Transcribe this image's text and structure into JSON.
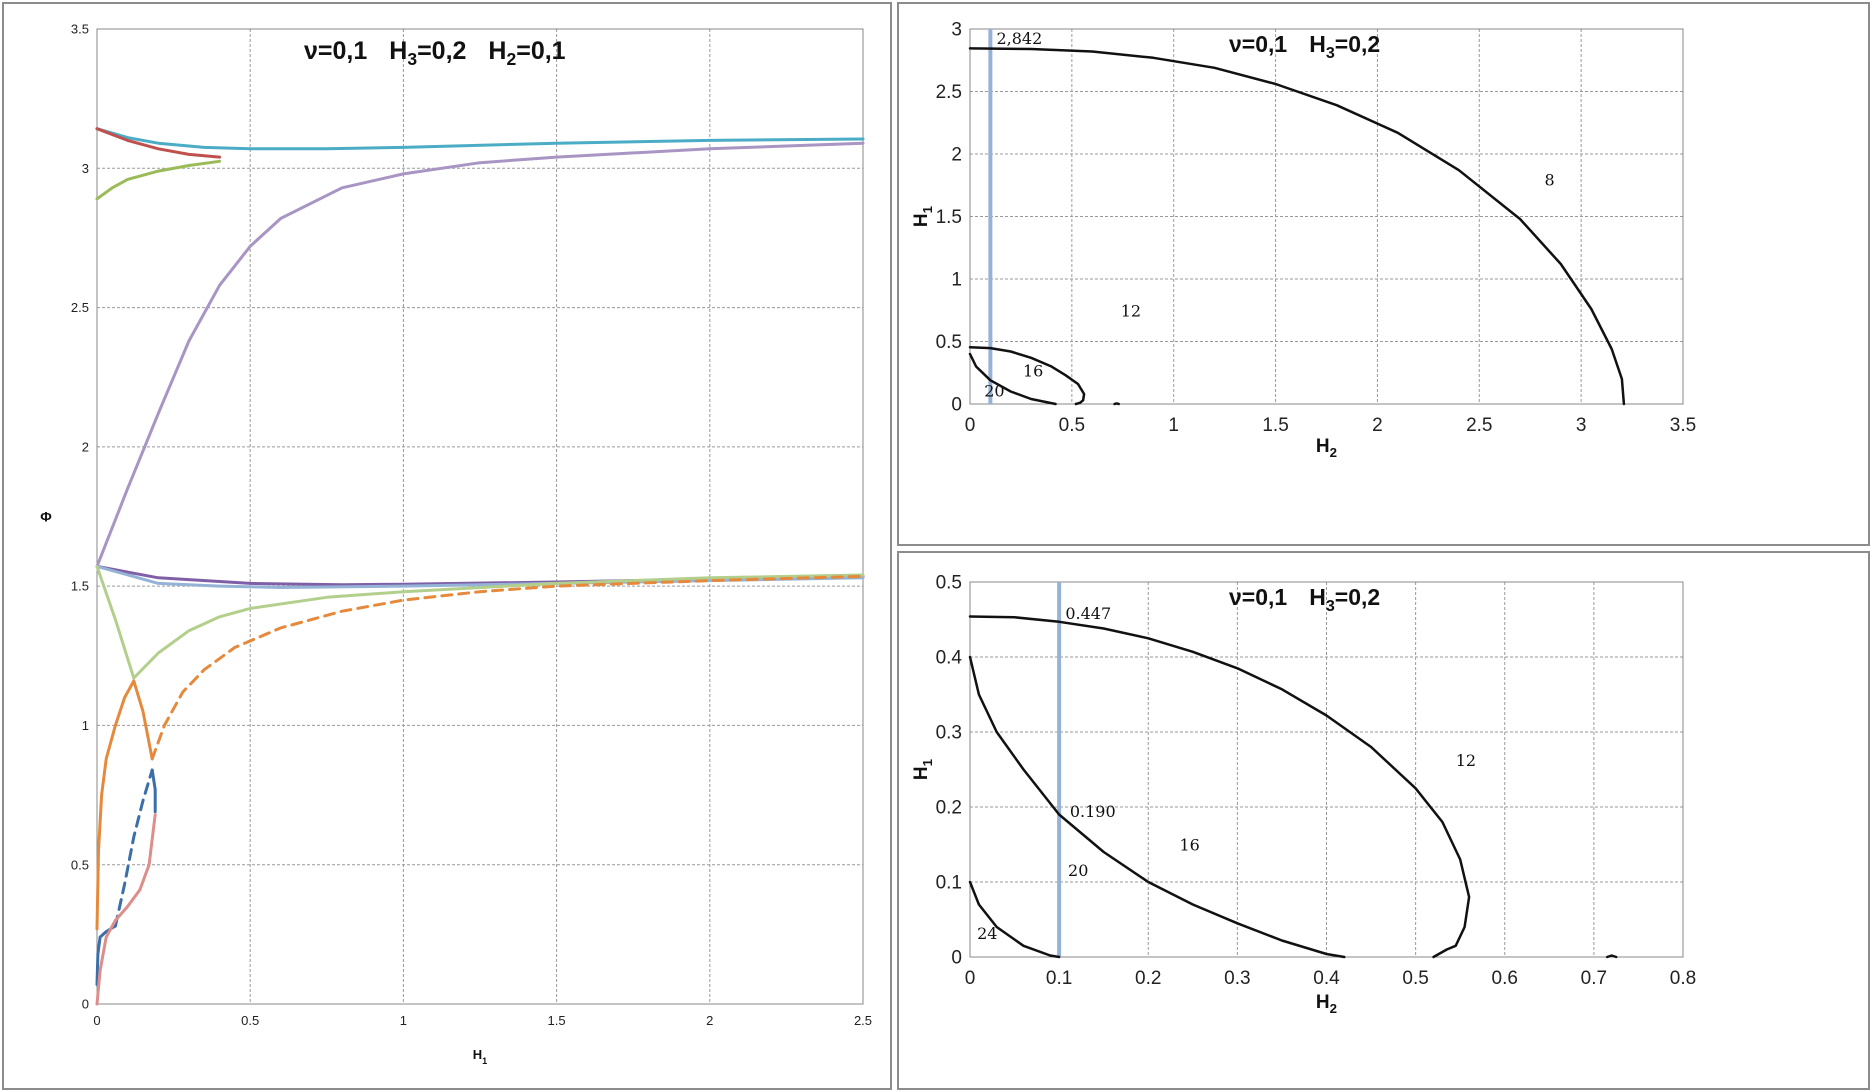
{
  "chart_data": [
    {
      "type": "line",
      "title": "ν=0,1   H₃=0,2   H₂=0,1",
      "title_parts": {
        "p1": "ν=0,1",
        "h3": "H",
        "h3sub": "3",
        "h3val": "=0,2",
        "h2": "H",
        "h2sub": "2",
        "h2val": "=0,1"
      },
      "xlabel": "H₁",
      "xlabel_parts": {
        "main": "H",
        "sub": "1"
      },
      "ylabel": "Φ",
      "xlim": [
        0,
        2.5
      ],
      "ylim": [
        0,
        3.5
      ],
      "x_ticks": [
        "0",
        "0.5",
        "1",
        "1.5",
        "2",
        "2.5"
      ],
      "y_ticks": [
        "0",
        "0.5",
        "1",
        "1.5",
        "2",
        "2.5",
        "3",
        "3.5"
      ],
      "grid": true,
      "series": [
        {
          "color": "#4bacc6",
          "style": "solid",
          "points": [
            [
              0,
              3.142
            ],
            [
              0.1,
              3.11
            ],
            [
              0.2,
              3.09
            ],
            [
              0.35,
              3.075
            ],
            [
              0.5,
              3.07
            ],
            [
              0.75,
              3.07
            ],
            [
              1.0,
              3.075
            ],
            [
              1.5,
              3.09
            ],
            [
              2.0,
              3.1
            ],
            [
              2.5,
              3.105
            ]
          ]
        },
        {
          "color": "#c0504d",
          "style": "solid",
          "points": [
            [
              0,
              3.142
            ],
            [
              0.1,
              3.1
            ],
            [
              0.2,
              3.07
            ],
            [
              0.3,
              3.05
            ],
            [
              0.4,
              3.04
            ]
          ]
        },
        {
          "color": "#9bbb59",
          "style": "solid",
          "points": [
            [
              0,
              2.89
            ],
            [
              0.05,
              2.93
            ],
            [
              0.1,
              2.96
            ],
            [
              0.2,
              2.99
            ],
            [
              0.3,
              3.01
            ],
            [
              0.4,
              3.025
            ]
          ]
        },
        {
          "color": "#a895c4",
          "style": "solid",
          "points": [
            [
              0,
              1.571
            ],
            [
              0.1,
              1.85
            ],
            [
              0.2,
              2.12
            ],
            [
              0.3,
              2.38
            ],
            [
              0.4,
              2.58
            ],
            [
              0.5,
              2.72
            ],
            [
              0.6,
              2.82
            ],
            [
              0.8,
              2.93
            ],
            [
              1.0,
              2.98
            ],
            [
              1.25,
              3.02
            ],
            [
              1.5,
              3.04
            ],
            [
              2.0,
              3.07
            ],
            [
              2.5,
              3.09
            ]
          ]
        },
        {
          "color": "#7f5fa6",
          "style": "solid",
          "points": [
            [
              0,
              1.571
            ],
            [
              0.2,
              1.53
            ],
            [
              0.5,
              1.51
            ],
            [
              0.8,
              1.505
            ],
            [
              1.0,
              1.507
            ],
            [
              1.5,
              1.515
            ],
            [
              2.0,
              1.525
            ],
            [
              2.5,
              1.535
            ]
          ]
        },
        {
          "color": "#95b3d7",
          "style": "solid",
          "points": [
            [
              0,
              1.571
            ],
            [
              0.2,
              1.51
            ],
            [
              0.4,
              1.5
            ],
            [
              0.6,
              1.495
            ],
            [
              1.0,
              1.5
            ],
            [
              1.5,
              1.51
            ],
            [
              2.0,
              1.52
            ],
            [
              2.5,
              1.53
            ]
          ]
        },
        {
          "color": "#b3cf8c",
          "style": "solid",
          "points": [
            [
              0,
              1.571
            ],
            [
              0.06,
              1.38
            ],
            [
              0.12,
              1.17
            ],
            [
              0.2,
              1.26
            ],
            [
              0.3,
              1.34
            ],
            [
              0.4,
              1.39
            ],
            [
              0.5,
              1.42
            ],
            [
              0.75,
              1.46
            ],
            [
              1.0,
              1.48
            ],
            [
              1.5,
              1.51
            ],
            [
              2.0,
              1.53
            ],
            [
              2.5,
              1.54
            ]
          ]
        },
        {
          "color": "#e58a3d",
          "style": "solid",
          "points": [
            [
              0,
              0.27
            ],
            [
              0.005,
              0.55
            ],
            [
              0.015,
              0.75
            ],
            [
              0.03,
              0.88
            ],
            [
              0.06,
              1.0
            ],
            [
              0.09,
              1.1
            ],
            [
              0.12,
              1.16
            ],
            [
              0.15,
              1.05
            ],
            [
              0.18,
              0.88
            ]
          ]
        },
        {
          "color": "#e58a3d",
          "style": "dashed",
          "points": [
            [
              0.18,
              0.88
            ],
            [
              0.22,
              1.0
            ],
            [
              0.28,
              1.12
            ],
            [
              0.35,
              1.2
            ],
            [
              0.45,
              1.28
            ],
            [
              0.6,
              1.35
            ],
            [
              0.8,
              1.41
            ],
            [
              1.0,
              1.45
            ],
            [
              1.25,
              1.48
            ],
            [
              1.5,
              1.5
            ],
            [
              2.0,
              1.52
            ],
            [
              2.5,
              1.535
            ]
          ]
        },
        {
          "color": "#3c6eaa",
          "style": "solid",
          "points": [
            [
              0,
              0.07
            ],
            [
              0.003,
              0.18
            ],
            [
              0.01,
              0.24
            ],
            [
              0.03,
              0.26
            ],
            [
              0.06,
              0.28
            ]
          ]
        },
        {
          "color": "#3c6eaa",
          "style": "dashed",
          "points": [
            [
              0.06,
              0.28
            ],
            [
              0.09,
              0.43
            ],
            [
              0.12,
              0.6
            ],
            [
              0.15,
              0.73
            ],
            [
              0.18,
              0.84
            ]
          ]
        },
        {
          "color": "#3c6eaa",
          "style": "solid",
          "points": [
            [
              0.18,
              0.84
            ],
            [
              0.19,
              0.77
            ],
            [
              0.19,
              0.69
            ]
          ]
        },
        {
          "color": "#dc8e8b",
          "style": "solid",
          "points": [
            [
              0,
              0
            ],
            [
              0.01,
              0.12
            ],
            [
              0.03,
              0.24
            ],
            [
              0.06,
              0.3
            ],
            [
              0.1,
              0.35
            ],
            [
              0.14,
              0.41
            ],
            [
              0.17,
              0.5
            ],
            [
              0.19,
              0.68
            ]
          ]
        }
      ]
    },
    {
      "type": "line",
      "title": "ν=0,1   H₃=0,2",
      "title_parts": {
        "p1": "ν=0,1",
        "h3": "H",
        "h3sub": "3",
        "h3val": "=0,2"
      },
      "xlabel": "H₂",
      "xlabel_parts": {
        "main": "H",
        "sub": "2"
      },
      "ylabel": "H₁",
      "ylabel_parts": {
        "main": "H",
        "sub": "1"
      },
      "xlim": [
        0,
        3.5
      ],
      "ylim": [
        0,
        3
      ],
      "x_ticks": [
        "0",
        "0.5",
        "1",
        "1.5",
        "2",
        "2.5",
        "3",
        "3.5"
      ],
      "y_ticks": [
        "0",
        "0.5",
        "1",
        "1.5",
        "2",
        "2.5",
        "3"
      ],
      "grid": true,
      "vertical_line": {
        "x": 0.1,
        "color": "#95b3d7"
      },
      "annotations": [
        {
          "text": "2,842",
          "x": 0.13,
          "y": 2.88
        },
        {
          "text": "8",
          "x": 2.82,
          "y": 1.75
        },
        {
          "text": "12",
          "x": 0.74,
          "y": 0.7
        },
        {
          "text": "16",
          "x": 0.26,
          "y": 0.22
        },
        {
          "text": "20",
          "x": 0.07,
          "y": 0.06
        }
      ],
      "series": [
        {
          "color": "#111111",
          "style": "solid",
          "points": [
            [
              0,
              2.845
            ],
            [
              0.3,
              2.84
            ],
            [
              0.6,
              2.82
            ],
            [
              0.9,
              2.77
            ],
            [
              1.2,
              2.69
            ],
            [
              1.5,
              2.56
            ],
            [
              1.8,
              2.39
            ],
            [
              2.1,
              2.17
            ],
            [
              2.4,
              1.87
            ],
            [
              2.7,
              1.48
            ],
            [
              2.9,
              1.12
            ],
            [
              3.05,
              0.76
            ],
            [
              3.15,
              0.44
            ],
            [
              3.2,
              0.2
            ],
            [
              3.21,
              0
            ]
          ]
        },
        {
          "color": "#111111",
          "style": "solid",
          "points": [
            [
              0,
              0.454
            ],
            [
              0.1,
              0.447
            ],
            [
              0.2,
              0.42
            ],
            [
              0.3,
              0.37
            ],
            [
              0.4,
              0.3
            ],
            [
              0.47,
              0.23
            ],
            [
              0.53,
              0.16
            ],
            [
              0.56,
              0.08
            ],
            [
              0.555,
              0.03
            ],
            [
              0.54,
              0.01
            ],
            [
              0.52,
              0
            ]
          ]
        },
        {
          "color": "#111111",
          "style": "solid",
          "points": [
            [
              0,
              0.4
            ],
            [
              0.03,
              0.3
            ],
            [
              0.1,
              0.19
            ],
            [
              0.2,
              0.1
            ],
            [
              0.3,
              0.04
            ],
            [
              0.42,
              0
            ]
          ]
        },
        {
          "color": "#111111",
          "style": "solid",
          "points": [
            [
              0.71,
              0
            ],
            [
              0.72,
              0.005
            ],
            [
              0.73,
              0
            ]
          ]
        }
      ]
    },
    {
      "type": "line",
      "title": "ν=0,1   H₃=0,2",
      "title_parts": {
        "p1": "ν=0,1",
        "h3": "H",
        "h3sub": "3",
        "h3val": "=0,2"
      },
      "xlabel": "H₂",
      "xlabel_parts": {
        "main": "H",
        "sub": "2"
      },
      "ylabel": "H₁",
      "ylabel_parts": {
        "main": "H",
        "sub": "1"
      },
      "xlim": [
        0,
        0.8
      ],
      "ylim": [
        0,
        0.5
      ],
      "x_ticks": [
        "0",
        "0.1",
        "0.2",
        "0.3",
        "0.4",
        "0.5",
        "0.6",
        "0.7",
        "0.8"
      ],
      "y_ticks": [
        "0",
        "0.1",
        "0.2",
        "0.3",
        "0.4",
        "0.5"
      ],
      "grid": true,
      "vertical_line": {
        "x": 0.1,
        "color": "#95b3d7"
      },
      "annotations": [
        {
          "text": "0.447",
          "x": 0.107,
          "y": 0.451
        },
        {
          "text": "0.190",
          "x": 0.112,
          "y": 0.187
        },
        {
          "text": "12",
          "x": 0.545,
          "y": 0.255
        },
        {
          "text": "16",
          "x": 0.235,
          "y": 0.142
        },
        {
          "text": "20",
          "x": 0.11,
          "y": 0.108
        },
        {
          "text": "24",
          "x": 0.008,
          "y": 0.024
        }
      ],
      "series": [
        {
          "color": "#111111",
          "style": "solid",
          "points": [
            [
              0,
              0.454
            ],
            [
              0.05,
              0.453
            ],
            [
              0.1,
              0.447
            ],
            [
              0.15,
              0.438
            ],
            [
              0.2,
              0.425
            ],
            [
              0.25,
              0.407
            ],
            [
              0.3,
              0.385
            ],
            [
              0.35,
              0.357
            ],
            [
              0.4,
              0.322
            ],
            [
              0.45,
              0.28
            ],
            [
              0.5,
              0.225
            ],
            [
              0.53,
              0.18
            ],
            [
              0.55,
              0.13
            ],
            [
              0.56,
              0.08
            ],
            [
              0.555,
              0.04
            ],
            [
              0.545,
              0.015
            ],
            [
              0.535,
              0.01
            ],
            [
              0.52,
              0
            ]
          ]
        },
        {
          "color": "#111111",
          "style": "solid",
          "points": [
            [
              0,
              0.4
            ],
            [
              0.01,
              0.35
            ],
            [
              0.03,
              0.3
            ],
            [
              0.06,
              0.25
            ],
            [
              0.1,
              0.19
            ],
            [
              0.15,
              0.14
            ],
            [
              0.2,
              0.1
            ],
            [
              0.25,
              0.07
            ],
            [
              0.3,
              0.045
            ],
            [
              0.35,
              0.022
            ],
            [
              0.4,
              0.004
            ],
            [
              0.42,
              0
            ]
          ]
        },
        {
          "color": "#111111",
          "style": "solid",
          "points": [
            [
              0,
              0.1
            ],
            [
              0.01,
              0.07
            ],
            [
              0.03,
              0.04
            ],
            [
              0.06,
              0.015
            ],
            [
              0.09,
              0.002
            ],
            [
              0.1,
              0
            ]
          ]
        },
        {
          "color": "#111111",
          "style": "solid",
          "points": [
            [
              0.715,
              0
            ],
            [
              0.72,
              0.002
            ],
            [
              0.725,
              0
            ]
          ]
        }
      ]
    }
  ]
}
